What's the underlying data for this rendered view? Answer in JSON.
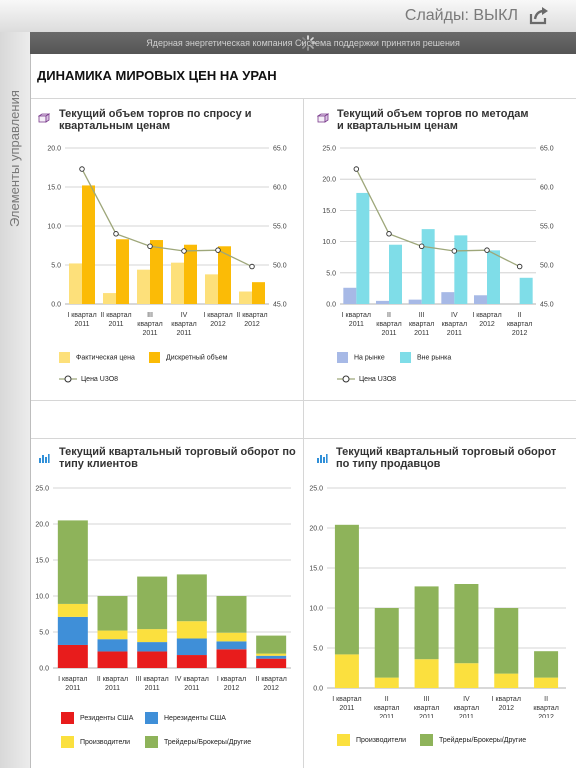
{
  "app": {
    "slides_toggle_label": "Слайды: ВЫКЛ",
    "subtitle": "Ядерная энергетическая компания Система поддержки принятия решения",
    "side_tab_label": "Элементы управления",
    "page_title": "ДИНАМИКА МИРОВЫХ ЦЕН НА УРАН"
  },
  "colors": {
    "light_yellow": "#fde07a",
    "orange": "#fbbb06",
    "light_blue": "#a7b9e6",
    "cyan": "#7fdde8",
    "red": "#e81c1c",
    "blue": "#3f8fd8",
    "yellow": "#fbe03e",
    "green": "#8eb35a",
    "line": "#9ea77a"
  },
  "panels": [
    {
      "title": "Текущий объем торгов по спросу и квартальным ценам",
      "icon": "box-icon",
      "legend": [
        {
          "label": "Фактическая цена",
          "kind": "swatch",
          "color": "#fde07a"
        },
        {
          "label": "Дискретный объем",
          "kind": "swatch",
          "color": "#fbbb06"
        },
        {
          "label": "Цена U3O8",
          "kind": "line",
          "color": "#9ea77a"
        }
      ]
    },
    {
      "title": "Текущий объем торгов по методам и квартальным ценам",
      "icon": "box-icon",
      "legend": [
        {
          "label": "На рынке",
          "kind": "swatch",
          "color": "#a7b9e6"
        },
        {
          "label": "Вне рынка",
          "kind": "swatch",
          "color": "#7fdde8"
        },
        {
          "label": "Цена U3O8",
          "kind": "line",
          "color": "#9ea77a"
        }
      ]
    },
    {
      "title": "Текущий квартальный торговый оборот по типу клиентов",
      "icon": "bar-chart-icon",
      "legend": [
        {
          "label": "Резиденты США",
          "kind": "swatch",
          "color": "#e81c1c"
        },
        {
          "label": "Нерезиденты США",
          "kind": "swatch",
          "color": "#3f8fd8"
        },
        {
          "label": "Производители",
          "kind": "swatch",
          "color": "#fbe03e"
        },
        {
          "label": "Трейдеры/Брокеры/Другие",
          "kind": "swatch",
          "color": "#8eb35a"
        }
      ]
    },
    {
      "title": "Текущий квартальный торговый оборот по типу продавцов",
      "icon": "bar-chart-icon",
      "legend": [
        {
          "label": "Производители",
          "kind": "swatch",
          "color": "#fbe03e"
        },
        {
          "label": "Трейдеры/Брокеры/Другие",
          "kind": "swatch",
          "color": "#8eb35a"
        }
      ]
    }
  ],
  "chart_data": [
    {
      "type": "bar",
      "categories": [
        [
          "I квартал",
          "2011"
        ],
        [
          "II квартал",
          "2011"
        ],
        [
          "III",
          "квартал",
          "2011"
        ],
        [
          "IV",
          "квартал",
          "2011"
        ],
        [
          "I квартал",
          "2012"
        ],
        [
          "II квартал",
          "2012"
        ]
      ],
      "ylim": [
        0,
        20
      ],
      "yticks": [
        "0.0",
        "5.0",
        "10.0",
        "15.0",
        "20.0"
      ],
      "y2lim": [
        45,
        65
      ],
      "y2ticks": [
        "45.0",
        "50.0",
        "55.0",
        "60.0",
        "65.0"
      ],
      "series": [
        {
          "name": "Фактическая цена",
          "values": [
            5.2,
            1.4,
            4.4,
            5.3,
            3.8,
            1.6
          ]
        },
        {
          "name": "Дискретный объем",
          "values": [
            15.2,
            8.3,
            8.2,
            7.6,
            7.4,
            2.8
          ]
        },
        {
          "name": "Цена U3O8",
          "axis": "right",
          "line": true,
          "values": [
            62.3,
            54.0,
            52.4,
            51.8,
            51.9,
            49.8
          ]
        }
      ]
    },
    {
      "type": "bar",
      "categories": [
        [
          "I квартал",
          "2011"
        ],
        [
          "II",
          "квартал",
          "2011"
        ],
        [
          "III",
          "квартал",
          "2011"
        ],
        [
          "IV",
          "квартал",
          "2011"
        ],
        [
          "I квартал",
          "2012"
        ],
        [
          "II",
          "квартал",
          "2012"
        ]
      ],
      "ylim": [
        0,
        25
      ],
      "yticks": [
        "0.0",
        "5.0",
        "10.0",
        "15.0",
        "20.0",
        "25.0"
      ],
      "y2lim": [
        45,
        65
      ],
      "y2ticks": [
        "45.0",
        "50.0",
        "55.0",
        "60.0",
        "65.0"
      ],
      "series": [
        {
          "name": "На рынке",
          "values": [
            2.6,
            0.5,
            0.7,
            1.9,
            1.4,
            0.0
          ]
        },
        {
          "name": "Вне рынка",
          "values": [
            17.8,
            9.5,
            12.0,
            11.0,
            8.6,
            4.2
          ]
        },
        {
          "name": "Цена U3O8",
          "axis": "right",
          "line": true,
          "values": [
            62.3,
            54.0,
            52.4,
            51.8,
            51.9,
            49.8
          ]
        }
      ]
    },
    {
      "type": "bar",
      "stacked": true,
      "categories": [
        [
          "I квартал",
          "2011"
        ],
        [
          "II квартал",
          "2011"
        ],
        [
          "III квартал",
          "2011"
        ],
        [
          "IV квартал",
          "2011"
        ],
        [
          "I квартал",
          "2012"
        ],
        [
          "II квартал",
          "2012"
        ]
      ],
      "ylim": [
        0,
        25
      ],
      "yticks": [
        "0.0",
        "5.0",
        "10.0",
        "15.0",
        "20.0",
        "25.0"
      ],
      "series": [
        {
          "name": "Резиденты США",
          "values": [
            3.2,
            2.3,
            2.3,
            1.8,
            2.6,
            1.3
          ]
        },
        {
          "name": "Нерезиденты США",
          "values": [
            3.9,
            1.7,
            1.3,
            2.3,
            1.1,
            0.4
          ]
        },
        {
          "name": "Производители",
          "values": [
            1.8,
            1.2,
            1.8,
            2.4,
            1.2,
            0.3
          ]
        },
        {
          "name": "Трейдеры/Брокеры/Другие",
          "values": [
            11.6,
            4.8,
            7.3,
            6.5,
            5.1,
            2.5
          ]
        }
      ]
    },
    {
      "type": "bar",
      "stacked": true,
      "categories": [
        [
          "I квартал",
          "2011"
        ],
        [
          "II",
          "квартал",
          "2011"
        ],
        [
          "III",
          "квартал",
          "2011"
        ],
        [
          "IV",
          "квартал",
          "2011"
        ],
        [
          "I квартал",
          "2012"
        ],
        [
          "II",
          "квартал",
          "2012"
        ]
      ],
      "ylim": [
        0,
        25
      ],
      "yticks": [
        "0.0",
        "5.0",
        "10.0",
        "15.0",
        "20.0",
        "25.0"
      ],
      "series": [
        {
          "name": "Производители",
          "values": [
            4.2,
            1.3,
            3.6,
            3.1,
            1.8,
            1.3
          ]
        },
        {
          "name": "Трейдеры/Брокеры/Другие",
          "values": [
            16.2,
            8.7,
            9.1,
            9.9,
            8.2,
            3.3
          ]
        }
      ]
    }
  ]
}
